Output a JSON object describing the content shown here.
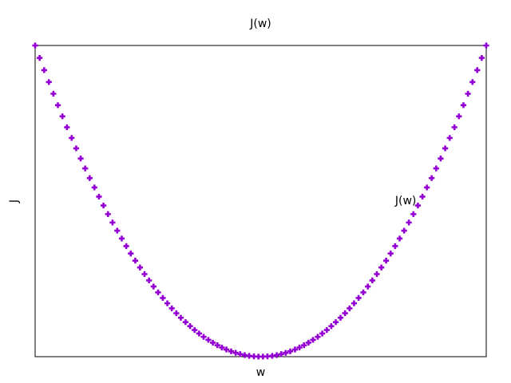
{
  "chart_data": {
    "type": "scatter",
    "title": "J(w)",
    "xlabel": "w",
    "ylabel": "J",
    "color": "#9400d3",
    "marker": "plus",
    "xlim": [
      -10,
      10
    ],
    "ylim": [
      0,
      100
    ],
    "annotation": {
      "text": "J(w)",
      "x": 5.96,
      "y": 50
    },
    "x": [
      -10.0,
      -9.8,
      -9.6,
      -9.39,
      -9.19,
      -8.99,
      -8.79,
      -8.59,
      -8.38,
      -8.18,
      -7.98,
      -7.78,
      -7.58,
      -7.37,
      -7.17,
      -6.97,
      -6.77,
      -6.57,
      -6.36,
      -6.16,
      -5.96,
      -5.76,
      -5.56,
      -5.35,
      -5.15,
      -4.95,
      -4.75,
      -4.55,
      -4.34,
      -4.14,
      -3.94,
      -3.74,
      -3.54,
      -3.33,
      -3.13,
      -2.93,
      -2.73,
      -2.53,
      -2.32,
      -2.12,
      -1.92,
      -1.72,
      -1.52,
      -1.31,
      -1.11,
      -0.91,
      -0.71,
      -0.51,
      -0.3,
      -0.1,
      0.1,
      0.3,
      0.51,
      0.71,
      0.91,
      1.11,
      1.31,
      1.52,
      1.72,
      1.92,
      2.12,
      2.32,
      2.53,
      2.73,
      2.93,
      3.13,
      3.33,
      3.54,
      3.74,
      3.94,
      4.14,
      4.34,
      4.55,
      4.75,
      4.95,
      5.15,
      5.35,
      5.56,
      5.76,
      5.96,
      6.16,
      6.36,
      6.57,
      6.77,
      6.97,
      7.17,
      7.37,
      7.58,
      7.78,
      7.98,
      8.18,
      8.38,
      8.59,
      8.79,
      8.99,
      9.19,
      9.39,
      9.6,
      9.8,
      10.0
    ],
    "y": [
      100.0,
      96.0,
      92.08,
      88.25,
      84.49,
      80.82,
      77.23,
      73.72,
      70.29,
      66.94,
      63.68,
      60.49,
      57.39,
      54.37,
      51.43,
      48.58,
      45.8,
      43.11,
      40.5,
      37.97,
      35.52,
      33.15,
      30.86,
      28.66,
      26.54,
      24.5,
      22.54,
      20.66,
      18.87,
      17.15,
      15.52,
      13.97,
      12.5,
      11.11,
      9.81,
      8.58,
      7.44,
      6.38,
      5.4,
      4.5,
      3.68,
      2.95,
      2.3,
      1.72,
      1.23,
      0.83,
      0.5,
      0.26,
      0.09,
      0.01,
      0.01,
      0.09,
      0.26,
      0.5,
      0.83,
      1.23,
      1.72,
      2.3,
      2.95,
      3.68,
      4.5,
      5.4,
      6.38,
      7.44,
      8.58,
      9.81,
      11.11,
      12.5,
      13.97,
      15.52,
      17.15,
      18.87,
      20.66,
      22.54,
      24.5,
      26.54,
      28.66,
      30.86,
      33.15,
      35.52,
      37.97,
      40.5,
      43.11,
      45.8,
      48.58,
      51.43,
      54.37,
      57.39,
      60.49,
      63.68,
      66.94,
      70.29,
      73.72,
      77.23,
      80.82,
      84.49,
      88.25,
      92.08,
      96.0,
      100.0
    ]
  }
}
